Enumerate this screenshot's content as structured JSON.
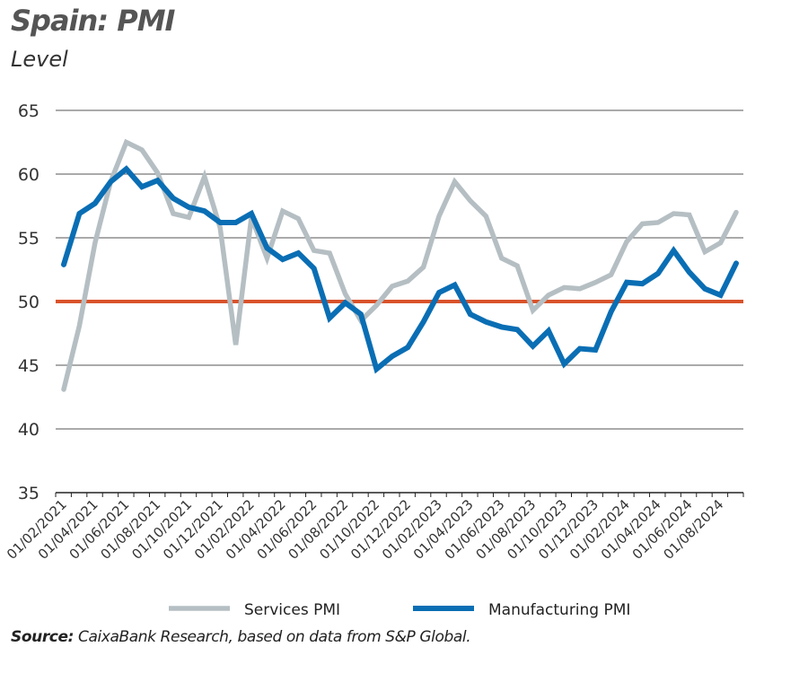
{
  "title": "Spain: PMI",
  "subtitle": "Level",
  "source_label": "Source:",
  "source_text": " CaixaBank Research, based on data from S&P Global.",
  "chart_data": {
    "type": "line",
    "ylim": [
      35,
      65
    ],
    "yticks": [
      35,
      40,
      45,
      50,
      55,
      60,
      65
    ],
    "grid": true,
    "legend_position": "bottom",
    "reference_line": {
      "y": 50,
      "color": "#d9532b"
    },
    "x": [
      "01/02/2021",
      "01/03/2021",
      "01/04/2021",
      "01/05/2021",
      "01/06/2021",
      "01/07/2021",
      "01/08/2021",
      "01/09/2021",
      "01/10/2021",
      "01/11/2021",
      "01/12/2021",
      "01/01/2022",
      "01/02/2022",
      "01/03/2022",
      "01/04/2022",
      "01/05/2022",
      "01/06/2022",
      "01/07/2022",
      "01/08/2022",
      "01/09/2022",
      "01/10/2022",
      "01/11/2022",
      "01/12/2022",
      "01/01/2023",
      "01/02/2023",
      "01/03/2023",
      "01/04/2023",
      "01/05/2023",
      "01/06/2023",
      "01/07/2023",
      "01/08/2023",
      "01/09/2023",
      "01/10/2023",
      "01/11/2023",
      "01/12/2023",
      "01/01/2024",
      "01/02/2024",
      "01/03/2024",
      "01/04/2024",
      "01/05/2024",
      "01/06/2024",
      "01/07/2024",
      "01/08/2024",
      "01/09/2024"
    ],
    "xtick_labels": [
      "01/02/2021",
      "01/04/2021",
      "01/06/2021",
      "01/08/2021",
      "01/10/2021",
      "01/12/2021",
      "01/02/2022",
      "01/04/2022",
      "01/06/2022",
      "01/08/2022",
      "01/10/2022",
      "01/12/2022",
      "01/02/2023",
      "01/04/2023",
      "01/06/2023",
      "01/08/2023",
      "01/10/2023",
      "01/12/2023",
      "01/02/2024",
      "01/04/2024",
      "01/06/2024",
      "01/08/2024"
    ],
    "series": [
      {
        "name": "Services PMI",
        "color": "#b5bfc3",
        "values": [
          43.1,
          48.1,
          54.6,
          59.4,
          62.5,
          61.9,
          60.1,
          56.9,
          56.6,
          59.8,
          55.8,
          46.6,
          56.6,
          53.4,
          57.1,
          56.5,
          54.0,
          53.8,
          50.6,
          48.5,
          49.7,
          51.2,
          51.6,
          52.7,
          56.7,
          59.4,
          57.9,
          56.7,
          53.4,
          52.8,
          49.3,
          50.5,
          51.1,
          51.0,
          51.5,
          52.1,
          54.7,
          56.1,
          56.2,
          56.9,
          56.8,
          53.9,
          54.6,
          57.0
        ]
      },
      {
        "name": "Manufacturing PMI",
        "color": "#0a6eb4",
        "values": [
          52.9,
          56.9,
          57.7,
          59.4,
          60.4,
          59.0,
          59.5,
          58.1,
          57.4,
          57.1,
          56.2,
          56.2,
          56.9,
          54.2,
          53.3,
          53.8,
          52.6,
          48.7,
          49.9,
          49.0,
          44.7,
          45.7,
          46.4,
          48.4,
          50.7,
          51.3,
          49.0,
          48.4,
          48.0,
          47.8,
          46.5,
          47.7,
          45.1,
          46.3,
          46.2,
          49.2,
          51.5,
          51.4,
          52.2,
          54.0,
          52.3,
          51.0,
          50.5,
          53.0
        ]
      }
    ]
  }
}
